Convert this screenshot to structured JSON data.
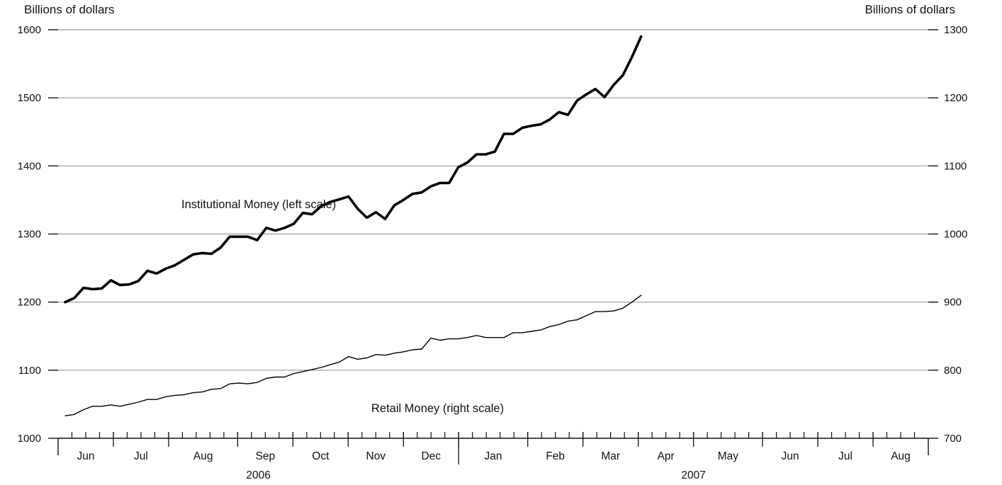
{
  "chart_data": {
    "type": "line",
    "left_axis": {
      "label": "Billions of dollars",
      "ylim": [
        1000,
        1600
      ],
      "ticks": [
        1000,
        1100,
        1200,
        1300,
        1400,
        1500,
        1600
      ]
    },
    "right_axis": {
      "label": "Billions of dollars",
      "ylim": [
        700,
        1300
      ],
      "ticks": [
        700,
        800,
        900,
        1000,
        1100,
        1200,
        1300
      ]
    },
    "grid": true,
    "months": [
      {
        "label": "Jun",
        "start": 0,
        "end": 4
      },
      {
        "label": "Jul",
        "start": 4,
        "end": 8
      },
      {
        "label": "Aug",
        "start": 8,
        "end": 13
      },
      {
        "label": "Sep",
        "start": 13,
        "end": 17
      },
      {
        "label": "Oct",
        "start": 17,
        "end": 21
      },
      {
        "label": "Nov",
        "start": 21,
        "end": 25
      },
      {
        "label": "Dec",
        "start": 25,
        "end": 29
      },
      {
        "label": "Jan",
        "start": 29,
        "end": 34
      },
      {
        "label": "Feb",
        "start": 34,
        "end": 38
      },
      {
        "label": "Mar",
        "start": 38,
        "end": 42
      },
      {
        "label": "Apr",
        "start": 42,
        "end": 46
      },
      {
        "label": "May",
        "start": 46,
        "end": 51
      },
      {
        "label": "Jun",
        "start": 51,
        "end": 55
      },
      {
        "label": "Jul",
        "start": 55,
        "end": 59
      },
      {
        "label": "Aug",
        "start": 59,
        "end": 63
      }
    ],
    "years": [
      {
        "label": "2006",
        "start": 0,
        "end": 29
      },
      {
        "label": "2007",
        "start": 29,
        "end": 63
      }
    ],
    "week_count": 63,
    "series": [
      {
        "name": "Institutional Money (left scale)",
        "axis": "left",
        "values": [
          1200,
          1206,
          1221,
          1219,
          1220,
          1232,
          1225,
          1226,
          1231,
          1246,
          1242,
          1249,
          1254,
          1262,
          1270,
          1272,
          1271,
          1280,
          1296,
          1296,
          1296,
          1291,
          1309,
          1305,
          1309,
          1315,
          1331,
          1329,
          1341,
          1347,
          1351,
          1355,
          1337,
          1324,
          1332,
          1322,
          1342,
          1350,
          1359,
          1361,
          1370,
          1375,
          1375,
          1398,
          1405,
          1417,
          1417,
          1421,
          1447,
          1447,
          1456,
          1459,
          1461,
          1468,
          1479,
          1475,
          1496,
          1505,
          1513,
          1501,
          1519,
          1533,
          1560,
          1590
        ]
      },
      {
        "name": "Retail Money (right scale)",
        "axis": "right",
        "values": [
          733,
          735,
          742,
          747,
          747,
          749,
          747,
          750,
          753,
          757,
          757,
          761,
          763,
          764,
          767,
          768,
          772,
          773,
          780,
          781,
          780,
          782,
          788,
          790,
          790,
          795,
          798,
          801,
          804,
          808,
          812,
          820,
          816,
          818,
          823,
          822,
          825,
          827,
          830,
          831,
          847,
          844,
          846,
          846,
          848,
          851,
          848,
          848,
          848,
          855,
          855,
          857,
          859,
          864,
          867,
          872,
          874,
          880,
          886,
          886,
          887,
          891,
          900,
          910
        ]
      }
    ]
  }
}
